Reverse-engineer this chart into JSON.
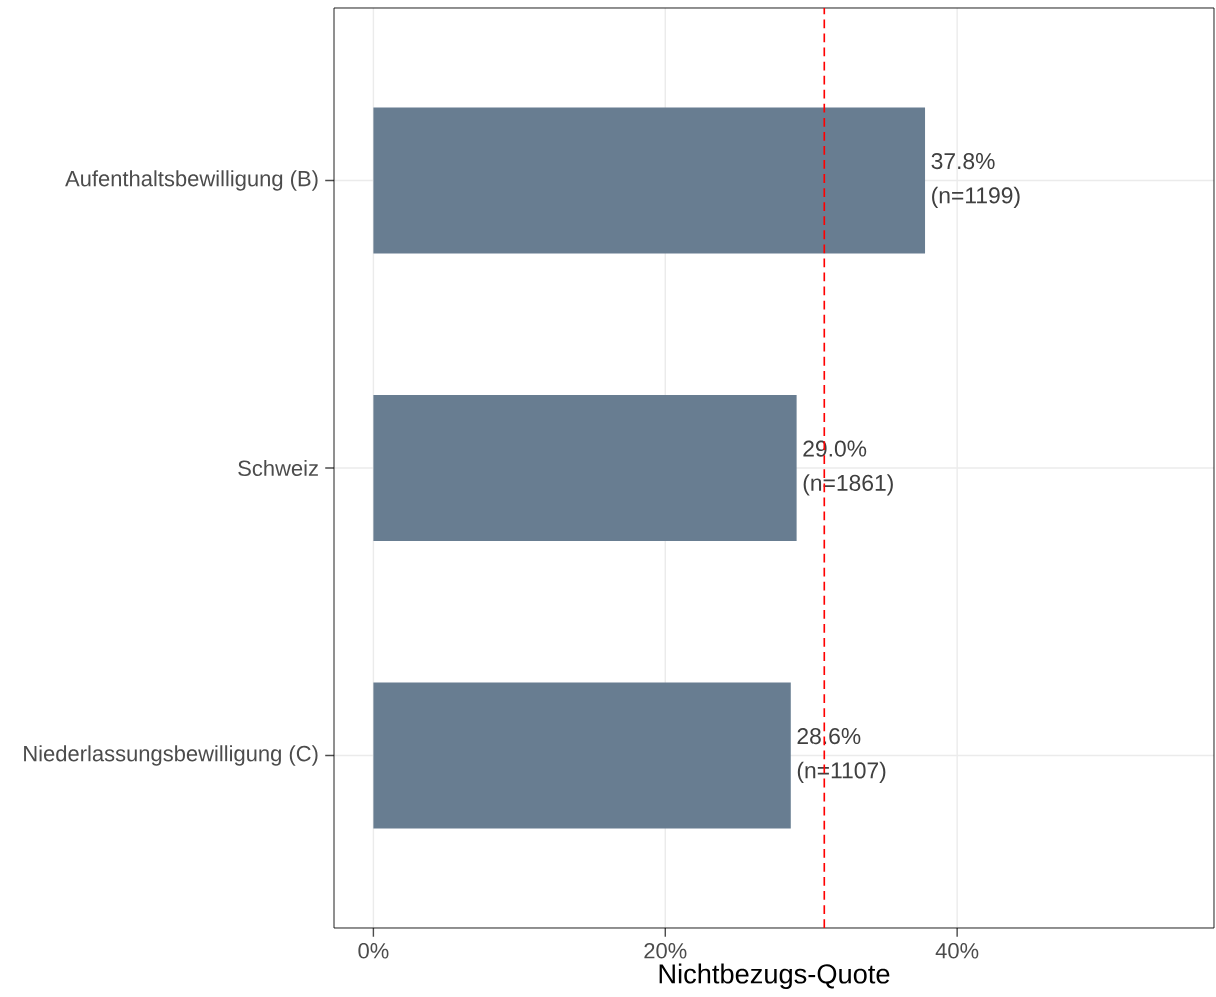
{
  "chart_data": {
    "type": "bar",
    "orientation": "horizontal",
    "xlabel": "Nichtbezugs-Quote",
    "categories": [
      "Aufenthaltsbewilligung (B)",
      "Schweiz",
      "Niederlassungsbewilligung (C)"
    ],
    "values": [
      37.8,
      29.0,
      28.6
    ],
    "color": "#687d91",
    "value_labels": [
      "37.8% (n=1199)",
      "29.0% (n=1861)",
      "28.6% (n=1107)"
    ],
    "xlim": [
      -2.7,
      57.6
    ],
    "xticks": [
      {
        "value": 0,
        "label": "0%"
      },
      {
        "value": 20,
        "label": "20%"
      },
      {
        "value": 40,
        "label": "40%"
      }
    ],
    "ref_lines": [
      {
        "axis": "x",
        "value": 30.9,
        "color": "#ff0000",
        "line_style": "dashed"
      }
    ],
    "grid": true
  }
}
